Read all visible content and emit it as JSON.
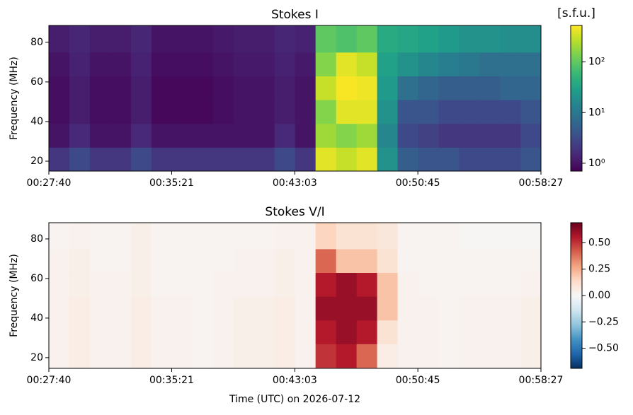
{
  "chart_data": [
    {
      "type": "heatmap",
      "title": "Stokes I",
      "ylabel": "Frequency (MHz)",
      "colorbar_label": "[s.f.u.]",
      "cmap": "viridis",
      "zscale": "log",
      "zlim": [
        0.7,
        525
      ],
      "zticks": [
        {
          "value": 1,
          "label": "10⁰"
        },
        {
          "value": 10,
          "label": "10¹"
        },
        {
          "value": 100,
          "label": "10²"
        }
      ],
      "xlim": [
        1660,
        3507
      ],
      "xticks": [
        {
          "value": 1660,
          "label": "00:27:40"
        },
        {
          "value": 2121,
          "label": "00:35:21"
        },
        {
          "value": 2583,
          "label": "00:43:03"
        },
        {
          "value": 3045,
          "label": "00:50:45"
        },
        {
          "value": 3507,
          "label": "00:58:27"
        }
      ],
      "ylim": [
        15,
        88.5
      ],
      "yticks": [
        20,
        40,
        60,
        80
      ],
      "x_bins": [
        1660,
        1737,
        1814,
        1891,
        1968,
        2045,
        2122,
        2199,
        2276,
        2353,
        2430,
        2507,
        2584,
        2661,
        2738,
        2815,
        2892,
        2969,
        3046,
        3123,
        3200,
        3277,
        3354,
        3431,
        3507
      ],
      "y_bins": [
        15,
        27,
        39,
        51,
        63,
        75,
        88.5
      ],
      "z": [
        [
          2,
          3,
          2,
          2,
          3,
          2,
          2,
          2,
          2,
          2,
          2,
          3,
          2,
          400,
          300,
          400,
          20,
          5,
          4,
          4,
          3,
          3,
          3,
          4
        ],
        [
          1,
          1.5,
          1,
          1,
          1.5,
          1,
          1,
          1,
          1,
          1,
          1,
          1.5,
          1,
          200,
          150,
          200,
          15,
          3,
          2.5,
          2,
          2,
          2,
          2,
          3
        ],
        [
          0.9,
          1.2,
          0.9,
          0.9,
          1.2,
          0.8,
          0.8,
          0.8,
          0.9,
          1,
          1,
          1.2,
          1,
          150,
          400,
          400,
          20,
          4,
          4,
          3,
          3,
          3,
          3,
          4
        ],
        [
          0.9,
          1.2,
          0.9,
          0.9,
          1.2,
          0.8,
          0.8,
          0.8,
          0.9,
          1,
          1,
          1.2,
          1,
          300,
          500,
          450,
          25,
          8,
          6,
          5,
          5,
          5,
          6,
          6
        ],
        [
          1,
          1.3,
          1,
          1,
          1.3,
          0.9,
          0.9,
          0.9,
          1,
          1.1,
          1.1,
          1.3,
          1.1,
          150,
          400,
          300,
          30,
          20,
          15,
          12,
          10,
          8,
          8,
          8
        ],
        [
          1.2,
          1.4,
          1.2,
          1.2,
          1.4,
          1,
          1,
          1,
          1.1,
          1.2,
          1.2,
          1.4,
          1.3,
          100,
          80,
          100,
          40,
          35,
          30,
          25,
          20,
          20,
          18,
          18
        ]
      ]
    },
    {
      "type": "heatmap",
      "title": "Stokes V/I",
      "ylabel": "Frequency (MHz)",
      "xlabel": "Time (UTC) on 2026-07-12",
      "cmap": "RdBu_r",
      "zscale": "linear",
      "zlim": [
        -0.69,
        0.69
      ],
      "zticks": [
        {
          "value": 0.5,
          "label": "0.50"
        },
        {
          "value": 0.25,
          "label": "0.25"
        },
        {
          "value": 0,
          "label": "0.00"
        },
        {
          "value": -0.25,
          "label": "−0.25"
        },
        {
          "value": -0.5,
          "label": "−0.50"
        }
      ],
      "xlim": [
        1660,
        3507
      ],
      "xticks": [
        {
          "value": 1660,
          "label": "00:27:40"
        },
        {
          "value": 2121,
          "label": "00:35:21"
        },
        {
          "value": 2583,
          "label": "00:43:03"
        },
        {
          "value": 3045,
          "label": "00:50:45"
        },
        {
          "value": 3507,
          "label": "00:58:27"
        }
      ],
      "ylim": [
        14.6,
        88.2
      ],
      "yticks": [
        20,
        40,
        60,
        80
      ],
      "x_bins": [
        1660,
        1737,
        1814,
        1891,
        1968,
        2045,
        2122,
        2199,
        2276,
        2353,
        2430,
        2507,
        2584,
        2661,
        2738,
        2815,
        2892,
        2969,
        3046,
        3123,
        3200,
        3277,
        3354,
        3431,
        3507
      ],
      "y_bins": [
        15,
        27,
        39,
        51,
        63,
        75,
        88.5
      ],
      "z": [
        [
          0.03,
          0.05,
          0.03,
          0.03,
          0.05,
          0.03,
          0.03,
          0.02,
          0.03,
          0.04,
          0.04,
          0.05,
          0.03,
          0.5,
          0.55,
          0.4,
          0.05,
          0.03,
          0.03,
          0.02,
          0.03,
          0.03,
          0.03,
          0.04
        ],
        [
          0.03,
          0.05,
          0.03,
          0.03,
          0.05,
          0.03,
          0.03,
          0.02,
          0.03,
          0.04,
          0.04,
          0.05,
          0.03,
          0.55,
          0.6,
          0.55,
          0.1,
          0.03,
          0.03,
          0.02,
          0.03,
          0.03,
          0.03,
          0.04
        ],
        [
          0.03,
          0.05,
          0.03,
          0.03,
          0.05,
          0.03,
          0.03,
          0.02,
          0.03,
          0.04,
          0.04,
          0.05,
          0.03,
          0.6,
          0.6,
          0.6,
          0.2,
          0.03,
          0.03,
          0.02,
          0.03,
          0.03,
          0.03,
          0.04
        ],
        [
          0.03,
          0.04,
          0.03,
          0.03,
          0.04,
          0.02,
          0.02,
          0.02,
          0.03,
          0.03,
          0.03,
          0.04,
          0.03,
          0.55,
          0.6,
          0.55,
          0.2,
          0.03,
          0.02,
          0.02,
          0.02,
          0.02,
          0.02,
          0.03
        ],
        [
          0.03,
          0.04,
          0.02,
          0.02,
          0.04,
          0.02,
          0.02,
          0.02,
          0.02,
          0.03,
          0.03,
          0.04,
          0.03,
          0.4,
          0.2,
          0.2,
          0.1,
          0.02,
          0.02,
          0.02,
          0.02,
          0.02,
          0.02,
          0.02
        ],
        [
          0.02,
          0.03,
          0.02,
          0.02,
          0.04,
          0.02,
          0.02,
          0.02,
          0.02,
          0.02,
          0.02,
          0.03,
          0.03,
          0.15,
          0.1,
          0.1,
          0.08,
          0.02,
          0.02,
          0.02,
          0.01,
          0.01,
          0.01,
          0.01
        ]
      ]
    }
  ]
}
